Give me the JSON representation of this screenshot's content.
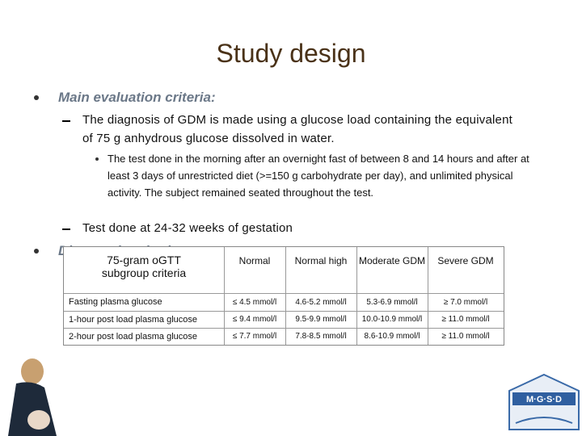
{
  "title": "Study design",
  "bullets": [
    {
      "text": "Main evaluation criteria:",
      "subs": [
        {
          "text": "The diagnosis of GDM is made using a glucose load containing the equivalent of 75 g anhydrous glucose dissolved in water.",
          "subs": [
            "The test done in the morning after an overnight fast of between 8 and 14 hours and after at least 3 days of unrestricted diet (>=150 g carbohydrate per day), and unlimited physical activity. The subject remained seated throughout the test."
          ]
        },
        {
          "text": "Test done at 24-32 weeks of gestation",
          "subs": []
        }
      ]
    },
    {
      "text": "Diagnostic criteria:",
      "subs": []
    }
  ],
  "table": {
    "header": [
      "75-gram oGTT subgroup criteria",
      "Normal",
      "Normal high",
      "Moderate GDM",
      "Severe GDM"
    ],
    "rows": [
      [
        "Fasting plasma glucose",
        "≤ 4.5 mmol/l",
        "4.6-5.2 mmol/l",
        "5.3-6.9 mmol/l",
        "≥ 7.0 mmol/l"
      ],
      [
        "1-hour post load plasma glucose",
        "≤ 9.4 mmol/l",
        "9.5-9.9 mmol/l",
        "10.0-10.9 mmol/l",
        "≥ 11.0 mmol/l"
      ],
      [
        "2-hour post load plasma glucose",
        "≤ 7.7 mmol/l",
        "7.8-8.5 mmol/l",
        "8.6-10.9 mmol/l",
        "≥ 11.0 mmol/l"
      ]
    ]
  },
  "logo": {
    "text": "M·G·S·D"
  }
}
